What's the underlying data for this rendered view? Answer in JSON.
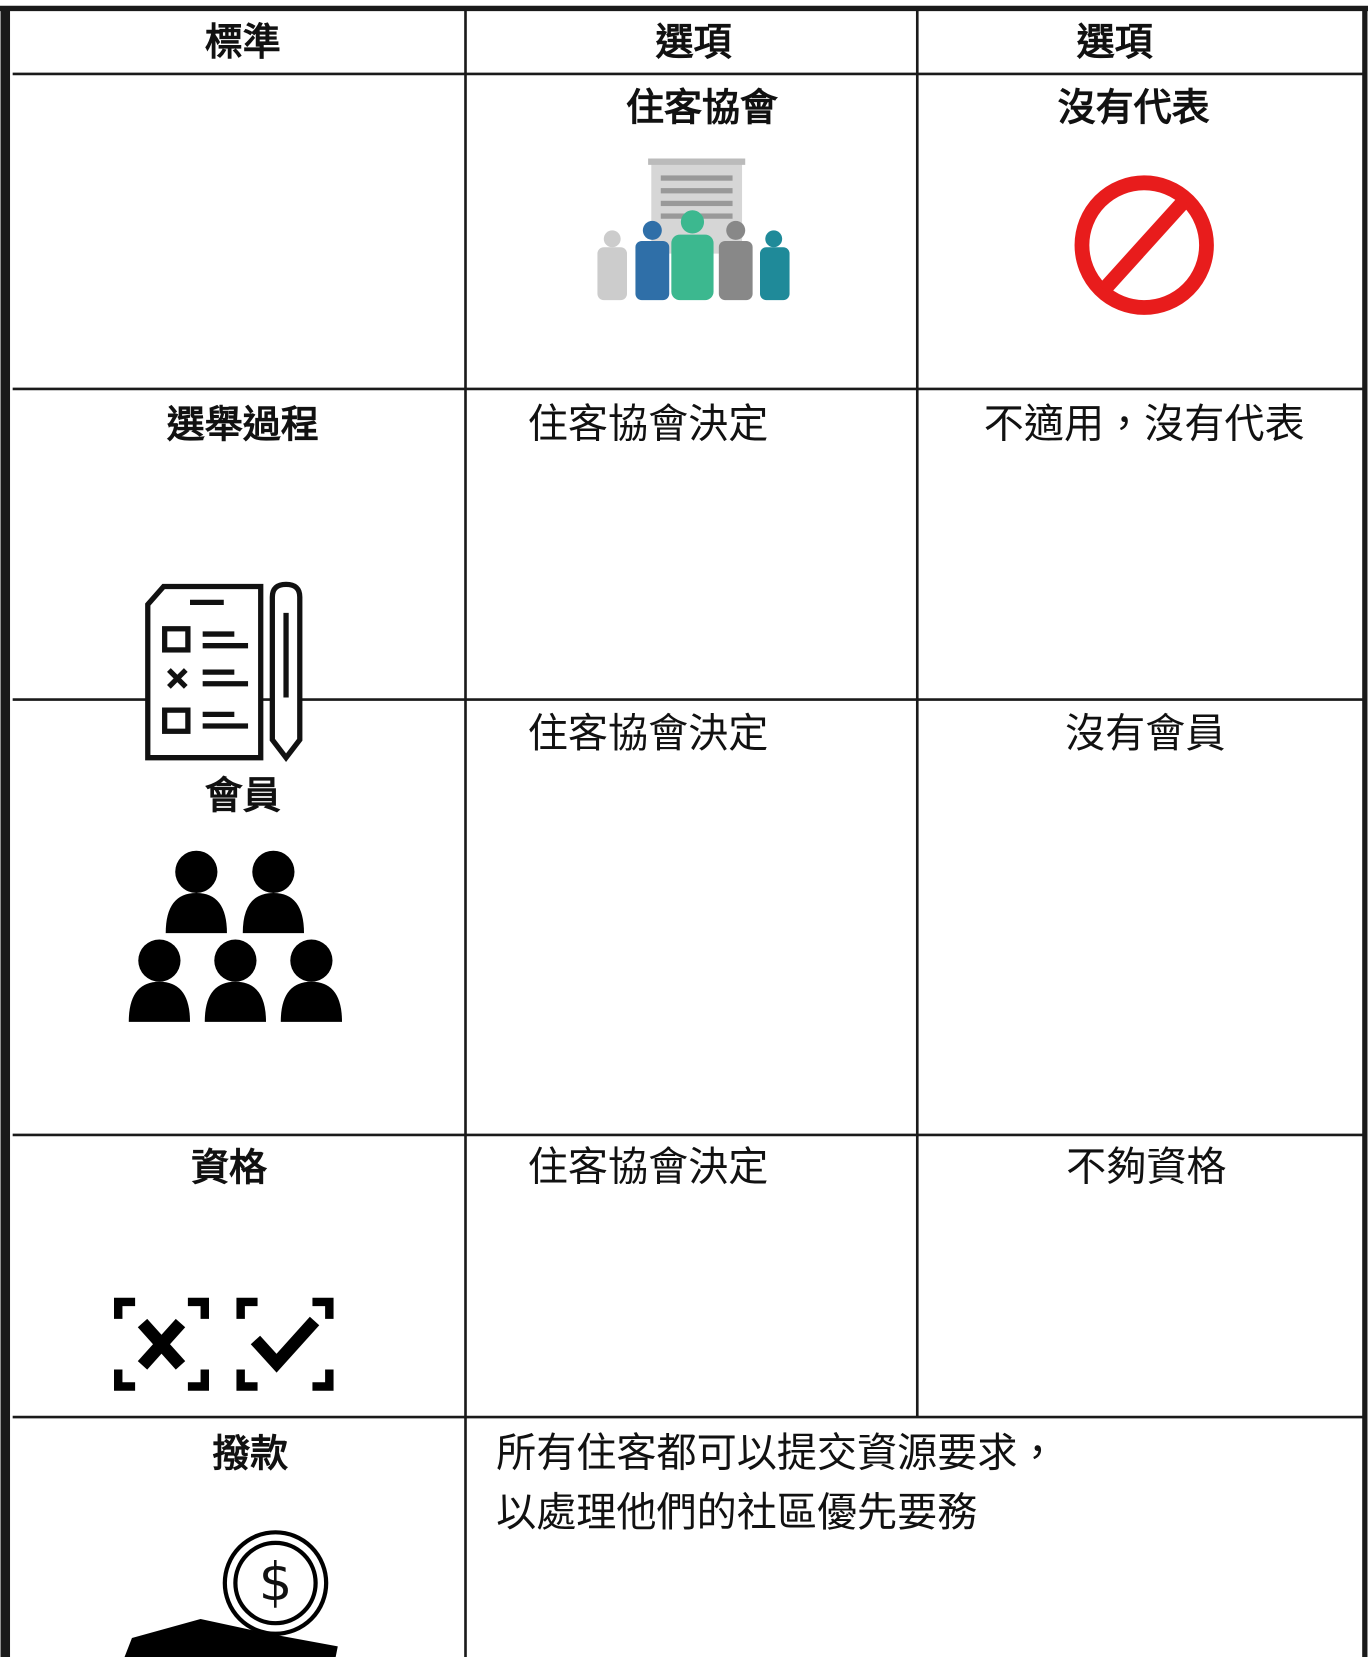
{
  "table": {
    "header": [
      "標準",
      "選項",
      "選項"
    ],
    "rows": [
      {
        "options": [
          "住客協會",
          "沒有代表"
        ]
      },
      {
        "criterion": "選舉過程",
        "options": [
          "住客協會決定",
          "不適用，沒有代表"
        ]
      },
      {
        "criterion": "會員",
        "options": [
          "住客協會決定",
          "沒有會員"
        ]
      },
      {
        "criterion": "資格",
        "options": [
          "住客協會決定",
          "不夠資格"
        ]
      },
      {
        "criterion": "撥款",
        "merged": [
          "所有住客都可以提交資源要求，",
          "以處理他們的社區優先要務"
        ]
      }
    ]
  }
}
